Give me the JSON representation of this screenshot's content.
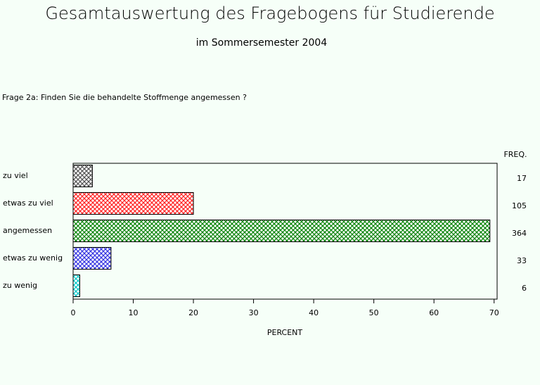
{
  "chart_data": {
    "type": "bar",
    "orientation": "horizontal",
    "title": "Gesamtauswertung des Fragebogens für Studierende",
    "subtitle": "im Sommersemester 2004",
    "question": "Frage 2a: Finden Sie die behandelte Stoffmenge angemessen ?",
    "categories": [
      "zu viel",
      "etwas zu viel",
      "angemessen",
      "etwas zu wenig",
      "zu wenig"
    ],
    "values": [
      3.2,
      20,
      69.3,
      6.3,
      1.1
    ],
    "colors": [
      "#505050",
      "#ff2020",
      "#008000",
      "#3030e0",
      "#00c8c8"
    ],
    "freq_label": "FREQ.",
    "freq": [
      "17",
      "105",
      "364",
      "33",
      "6"
    ],
    "xlabel": "PERCENT",
    "xlim": [
      0,
      70.5
    ],
    "xticks": [
      0,
      10,
      20,
      30,
      40,
      50,
      60,
      70
    ]
  }
}
